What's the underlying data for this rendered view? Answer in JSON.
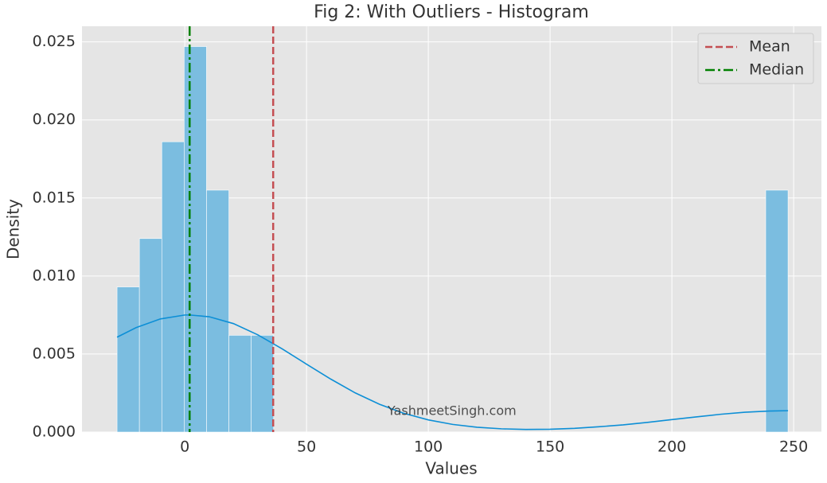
{
  "chart_data": {
    "type": "histogram",
    "title": "Fig 2: With Outliers - Histogram",
    "xlabel": "Values",
    "ylabel": "Density",
    "bins": [
      -27.8,
      -18.62,
      -9.43,
      -0.25,
      8.93,
      18.12,
      27.3,
      36.48,
      45.67,
      54.85,
      64.03,
      73.22,
      82.4,
      91.58,
      100.77,
      109.95,
      119.13,
      128.32,
      137.5,
      146.68,
      155.87,
      165.05,
      174.23,
      183.42,
      192.6,
      201.78,
      210.97,
      220.15,
      229.33,
      238.52,
      247.7
    ],
    "values": [
      0.0093,
      0.0124,
      0.0186,
      0.0247,
      0.0155,
      0.0062,
      0.0062,
      0,
      0,
      0,
      0,
      0,
      0,
      0,
      0,
      0,
      0,
      0,
      0,
      0,
      0,
      0,
      0,
      0,
      0,
      0,
      0,
      0,
      0,
      0.0155
    ],
    "color": "#7bbde0",
    "kde": {
      "color": "#0d8fd6",
      "x": [
        -27.8,
        -20,
        -10,
        0,
        2,
        10,
        20,
        30,
        40,
        50,
        60,
        70,
        80,
        90,
        100,
        110,
        120,
        130,
        140,
        150,
        160,
        170,
        180,
        190,
        200,
        210,
        220,
        230,
        240,
        247.7
      ],
      "values": [
        0.00608,
        0.00669,
        0.00725,
        0.0075,
        0.0075,
        0.00739,
        0.00695,
        0.00623,
        0.00533,
        0.00435,
        0.00339,
        0.00251,
        0.00178,
        0.0012,
        0.00078,
        0.00049,
        0.00031,
        0.00021,
        0.00017,
        0.00018,
        0.00024,
        0.00034,
        0.00046,
        0.00062,
        0.0008,
        0.00097,
        0.00114,
        0.00127,
        0.00135,
        0.00137
      ]
    },
    "vlines": [
      {
        "name": "Mean",
        "value": 36.3,
        "color": "#c44e52",
        "style": "dashed"
      },
      {
        "name": "Median",
        "value": 2.0,
        "color": "#008000",
        "style": "dashdot"
      }
    ],
    "annotation": "YashmeetSingh.com",
    "xlim": [
      -42.2,
      261.4
    ],
    "xticks": [
      0,
      50,
      100,
      150,
      200,
      250
    ],
    "ylim": [
      0,
      0.026
    ],
    "yticks": [
      {
        "value": 0,
        "label": "0.000"
      },
      {
        "value": 0.005,
        "label": "0.005"
      },
      {
        "value": 0.01,
        "label": "0.010"
      },
      {
        "value": 0.015,
        "label": "0.015"
      },
      {
        "value": 0.02,
        "label": "0.020"
      },
      {
        "value": 0.025,
        "label": "0.025"
      }
    ],
    "grid": true,
    "legend": "upper right"
  }
}
